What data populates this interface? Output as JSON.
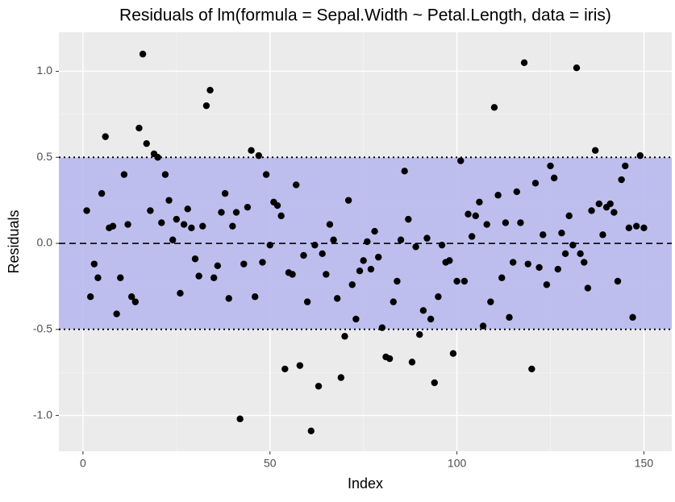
{
  "chart_data": {
    "type": "scatter",
    "title": "Residuals of lm(formula = Sepal.Width ~ Petal.Length, data = iris)",
    "x_label": "Index",
    "y_label": "Residuals",
    "xlim": [
      -6.45,
      157.45
    ],
    "ylim": [
      -1.208,
      1.227
    ],
    "xticks": [
      0,
      50,
      100,
      150
    ],
    "yticks": [
      {
        "value": 1.0,
        "label": "1.0"
      },
      {
        "value": 0.5,
        "label": "0.5"
      },
      {
        "value": 0,
        "label": "0.0"
      },
      {
        "value": -0.5,
        "label": "-0.5"
      },
      {
        "value": -1.0,
        "label": "-1.0"
      }
    ],
    "minor_xticks": [
      25,
      75,
      125
    ],
    "minor_yticks": [
      0.75,
      0.25,
      -0.25,
      -0.75
    ],
    "grid": true,
    "color": "#000000",
    "band": [
      -0.5,
      0.5
    ],
    "band_color": "#b9b9ee",
    "hline": 0,
    "series": [
      {
        "name": "residuals",
        "x": [
          1,
          2,
          3,
          4,
          5,
          6,
          7,
          8,
          9,
          10,
          11,
          12,
          13,
          14,
          15,
          16,
          17,
          18,
          19,
          20,
          21,
          22,
          23,
          24,
          25,
          26,
          27,
          28,
          29,
          30,
          31,
          32,
          33,
          34,
          35,
          36,
          37,
          38,
          39,
          40,
          41,
          42,
          43,
          44,
          45,
          46,
          47,
          48,
          49,
          50,
          51,
          52,
          53,
          54,
          55,
          56,
          57,
          58,
          59,
          60,
          61,
          62,
          63,
          64,
          65,
          66,
          67,
          68,
          69,
          70,
          71,
          72,
          73,
          74,
          75,
          76,
          77,
          78,
          79,
          80,
          81,
          82,
          83,
          84,
          85,
          86,
          87,
          88,
          89,
          90,
          91,
          92,
          93,
          94,
          95,
          96,
          97,
          98,
          99,
          100,
          101,
          102,
          103,
          104,
          105,
          106,
          107,
          108,
          109,
          110,
          111,
          112,
          113,
          114,
          115,
          116,
          117,
          118,
          119,
          120,
          121,
          122,
          123,
          124,
          125,
          126,
          127,
          128,
          129,
          130,
          131,
          132,
          133,
          134,
          135,
          136,
          137,
          138,
          139,
          140,
          141,
          142,
          143,
          144,
          145,
          146,
          147,
          148,
          149,
          150
        ],
        "values": [
          0.19,
          -0.31,
          -0.12,
          -0.2,
          0.29,
          0.62,
          0.09,
          0.1,
          -0.41,
          -0.2,
          0.4,
          0.11,
          -0.31,
          -0.34,
          0.67,
          1.1,
          0.58,
          0.19,
          0.52,
          0.5,
          0.12,
          0.4,
          0.25,
          0.02,
          0.14,
          -0.29,
          0.11,
          0.2,
          0.09,
          -0.09,
          -0.19,
          0.1,
          0.8,
          0.89,
          -0.2,
          -0.13,
          0.18,
          0.29,
          -0.32,
          0.1,
          0.18,
          -1.02,
          -0.12,
          0.21,
          0.54,
          -0.31,
          0.51,
          -0.11,
          0.4,
          -0.01,
          0.24,
          0.22,
          0.16,
          -0.73,
          -0.17,
          -0.18,
          0.34,
          -0.71,
          -0.07,
          -0.34,
          -1.09,
          -0.01,
          -0.83,
          -0.06,
          -0.18,
          0.11,
          0.02,
          -0.32,
          -0.78,
          -0.54,
          0.25,
          -0.24,
          -0.44,
          -0.16,
          -0.1,
          0.01,
          -0.15,
          0.07,
          -0.08,
          -0.49,
          -0.66,
          -0.67,
          -0.34,
          -0.22,
          0.02,
          0.42,
          0.14,
          -0.69,
          -0.02,
          -0.53,
          -0.39,
          0.03,
          -0.44,
          -0.81,
          -0.31,
          -0.01,
          -0.11,
          -0.1,
          -0.64,
          -0.22,
          0.48,
          -0.22,
          0.17,
          0.04,
          0.16,
          0.24,
          -0.48,
          0.11,
          -0.34,
          0.79,
          0.28,
          -0.2,
          0.12,
          -0.43,
          -0.11,
          0.3,
          0.12,
          1.05,
          -0.12,
          -0.73,
          0.35,
          -0.14,
          0.05,
          -0.24,
          0.45,
          0.38,
          -0.15,
          0.06,
          -0.06,
          0.16,
          -0.01,
          1.02,
          -0.06,
          -0.11,
          -0.26,
          0.19,
          0.54,
          0.23,
          0.05,
          0.21,
          0.23,
          0.18,
          -0.22,
          0.37,
          0.45,
          0.09,
          -0.43,
          0.1,
          0.51,
          0.09
        ]
      }
    ]
  }
}
